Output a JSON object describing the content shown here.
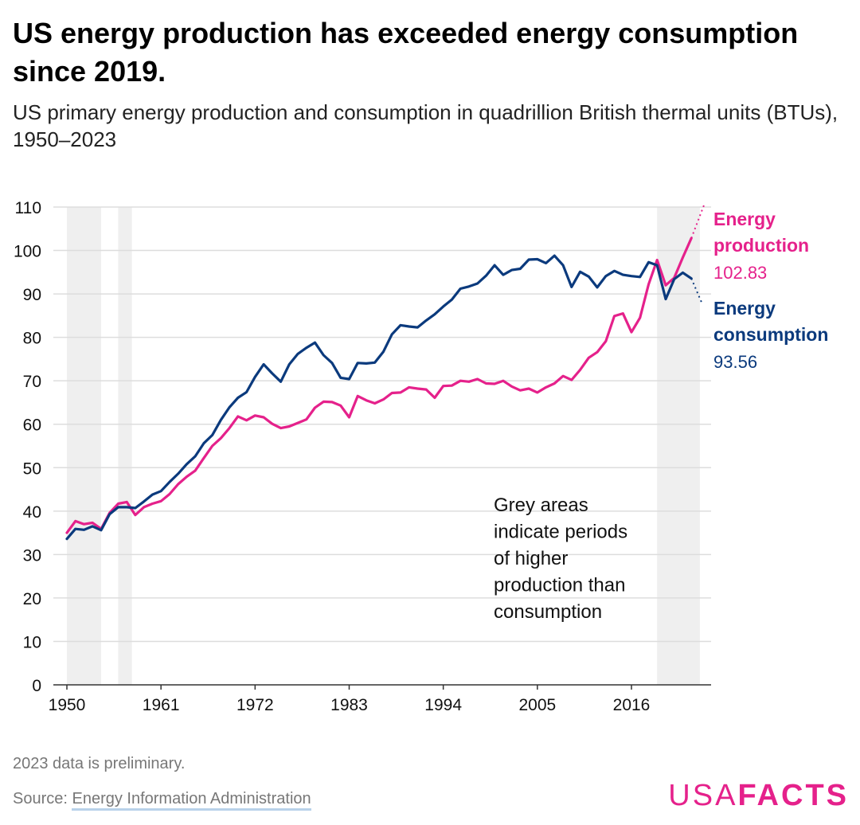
{
  "title": "US energy production has exceeded energy consumption since 2019.",
  "subtitle": "US primary energy production and consumption in quadrillion British thermal units (BTUs), 1950–2023",
  "note": "2023 data is preliminary.",
  "source_prefix": "Source: ",
  "source_link": "Energy Information Administration",
  "logo": {
    "part1": "USA",
    "part2": "FACTS"
  },
  "colors": {
    "production": "#e5218b",
    "consumption": "#0b3a7d",
    "shade": "#efefef",
    "grid": "#dddddd"
  },
  "chart_data": {
    "type": "line",
    "x_label": "",
    "y_label": "",
    "ylim": [
      0,
      110
    ],
    "y_ticks": [
      0,
      10,
      20,
      30,
      40,
      50,
      60,
      70,
      80,
      90,
      100,
      110
    ],
    "x_ticks": [
      1950,
      1961,
      1972,
      1983,
      1994,
      2005,
      2016
    ],
    "xlim": [
      1950,
      2025
    ],
    "grid": true,
    "annotation": "Grey areas indicate periods of higher production than consumption",
    "shaded_periods": [
      [
        1950,
        1954
      ],
      [
        1956,
        1957.6
      ],
      [
        2019,
        2024
      ]
    ],
    "series": [
      {
        "name": "Energy production",
        "label": "Energy production",
        "last_value_label": "102.83",
        "color": "#e5218b",
        "x": [
          1950,
          1951,
          1952,
          1953,
          1954,
          1955,
          1956,
          1957,
          1958,
          1959,
          1960,
          1961,
          1962,
          1963,
          1964,
          1965,
          1966,
          1967,
          1968,
          1969,
          1970,
          1971,
          1972,
          1973,
          1974,
          1975,
          1976,
          1977,
          1978,
          1979,
          1980,
          1981,
          1982,
          1983,
          1984,
          1985,
          1986,
          1987,
          1988,
          1989,
          1990,
          1991,
          1992,
          1993,
          1994,
          1995,
          1996,
          1997,
          1998,
          1999,
          2000,
          2001,
          2002,
          2003,
          2004,
          2005,
          2006,
          2007,
          2008,
          2009,
          2010,
          2011,
          2012,
          2013,
          2014,
          2015,
          2016,
          2017,
          2018,
          2019,
          2020,
          2021,
          2022,
          2023
        ],
        "values": [
          35,
          37.7,
          37,
          37.3,
          35.9,
          39.6,
          41.7,
          42.1,
          39.1,
          40.9,
          41.7,
          42.3,
          43.9,
          46.2,
          47.9,
          49.3,
          52.2,
          55,
          56.8,
          59.1,
          61.8,
          60.9,
          62,
          61.6,
          60.1,
          59.1,
          59.5,
          60.3,
          61.1,
          63.8,
          65.2,
          65.1,
          64.3,
          61.6,
          66.5,
          65.5,
          64.8,
          65.7,
          67.2,
          67.3,
          68.5,
          68.2,
          68,
          66.1,
          68.8,
          68.9,
          70,
          69.8,
          70.4,
          69.4,
          69.3,
          70,
          68.7,
          67.8,
          68.2,
          67.3,
          68.5,
          69.4,
          71.1,
          70.2,
          72.5,
          75.3,
          76.6,
          79.1,
          84.9,
          85.5,
          81.2,
          84.5,
          92.2,
          97.8,
          92,
          93.7,
          98.4,
          102.83
        ]
      },
      {
        "name": "Energy consumption",
        "label": "Energy consumption",
        "last_value_label": "93.56",
        "color": "#0b3a7d",
        "x": [
          1950,
          1951,
          1952,
          1953,
          1954,
          1955,
          1956,
          1957,
          1958,
          1959,
          1960,
          1961,
          1962,
          1963,
          1964,
          1965,
          1966,
          1967,
          1968,
          1969,
          1970,
          1971,
          1972,
          1973,
          1974,
          1975,
          1976,
          1977,
          1978,
          1979,
          1980,
          1981,
          1982,
          1983,
          1984,
          1985,
          1986,
          1987,
          1988,
          1989,
          1990,
          1991,
          1992,
          1993,
          1994,
          1995,
          1996,
          1997,
          1998,
          1999,
          2000,
          2001,
          2002,
          2003,
          2004,
          2005,
          2006,
          2007,
          2008,
          2009,
          2010,
          2011,
          2012,
          2013,
          2014,
          2015,
          2016,
          2017,
          2018,
          2019,
          2020,
          2021,
          2022,
          2023
        ],
        "values": [
          33.6,
          35.9,
          35.7,
          36.5,
          35.6,
          39.3,
          40.9,
          40.9,
          40.7,
          42.2,
          43.8,
          44.6,
          46.7,
          48.6,
          50.8,
          52.6,
          55.6,
          57.5,
          61,
          63.9,
          66.1,
          67.4,
          70.9,
          73.8,
          71.7,
          69.8,
          73.8,
          76.2,
          77.6,
          78.8,
          75.9,
          74.1,
          70.7,
          70.4,
          74.1,
          74,
          74.2,
          76.7,
          80.7,
          82.8,
          82.5,
          82.3,
          83.9,
          85.3,
          87.1,
          88.7,
          91.2,
          91.7,
          92.4,
          94.2,
          96.6,
          94.4,
          95.5,
          95.8,
          97.9,
          98,
          97.1,
          98.8,
          96.6,
          91.6,
          95.1,
          94,
          91.5,
          94.1,
          95.3,
          94.4,
          94.1,
          93.9,
          97.3,
          96.6,
          88.8,
          93.4,
          94.9,
          93.56
        ]
      }
    ],
    "extension_lines": "dotted extension from last point"
  }
}
